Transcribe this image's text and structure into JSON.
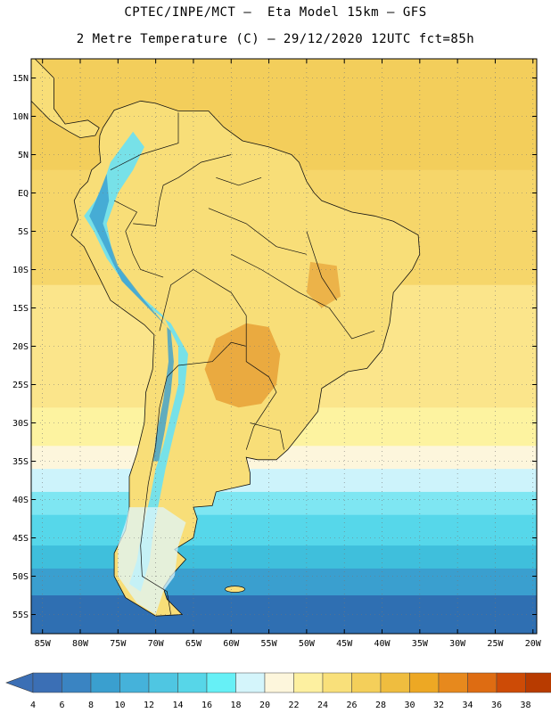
{
  "header": {
    "line1": "CPTEC/INPE/MCT –  Eta Model 15km – GFS",
    "line2": "2 Metre Temperature (C) – 29/12/2020 12UTC fct=85h"
  },
  "map": {
    "lat_labels": [
      "15N",
      "10N",
      "5N",
      "EQ",
      "5S",
      "10S",
      "15S",
      "20S",
      "25S",
      "30S",
      "35S",
      "40S",
      "45S",
      "50S",
      "55S"
    ],
    "lon_labels": [
      "85W",
      "80W",
      "75W",
      "70W",
      "65W",
      "60W",
      "55W",
      "50W",
      "45W",
      "40W",
      "35W",
      "30W",
      "25W",
      "20W"
    ],
    "lat_values": [
      15,
      10,
      5,
      0,
      -5,
      -10,
      -15,
      -20,
      -25,
      -30,
      -35,
      -40,
      -45,
      -50,
      -55
    ],
    "lon_values": [
      -85,
      -80,
      -75,
      -70,
      -65,
      -60,
      -55,
      -50,
      -45,
      -40,
      -35,
      -30,
      -25,
      -20
    ],
    "bounds": {
      "lon_min": -86.5,
      "lon_max": -19.5,
      "lat_min": -57.5,
      "lat_max": 17.5
    },
    "bands": [
      {
        "lat_top": 17.5,
        "lat_bottom": 3,
        "color": "#f3ce5b"
      },
      {
        "lat_top": 3,
        "lat_bottom": -12,
        "color": "#f6d66a"
      },
      {
        "lat_top": -12,
        "lat_bottom": -28,
        "color": "#fbe58b"
      },
      {
        "lat_top": -28,
        "lat_bottom": -33,
        "color": "#fdf3a0"
      },
      {
        "lat_top": -33,
        "lat_bottom": -36,
        "color": "#fdf6dc"
      },
      {
        "lat_top": -36,
        "lat_bottom": -39,
        "color": "#cdf3fb"
      },
      {
        "lat_top": -39,
        "lat_bottom": -42,
        "color": "#7ee6f2"
      },
      {
        "lat_top": -42,
        "lat_bottom": -46,
        "color": "#56d7ea"
      },
      {
        "lat_top": -46,
        "lat_bottom": -49,
        "color": "#3fbfdc"
      },
      {
        "lat_top": -49,
        "lat_bottom": -52.5,
        "color": "#3a9fcf"
      },
      {
        "lat_top": -52.5,
        "lat_bottom": -57.5,
        "color": "#2f6fb2"
      }
    ],
    "land_color": "#f8de78",
    "hot_color": "#e8a43a",
    "cool_color": "#70e0ee",
    "cold_color": "#3a9fcf"
  },
  "colorbar": {
    "labels": [
      "4",
      "6",
      "8",
      "10",
      "12",
      "14",
      "16",
      "18",
      "20",
      "22",
      "24",
      "26",
      "28",
      "30",
      "32",
      "34",
      "36",
      "38"
    ],
    "colors": [
      "#3b6fb5",
      "#3a84c2",
      "#3a9fcf",
      "#45b2da",
      "#4fc6e2",
      "#57d6e8",
      "#66f0f6",
      "#d4f5fb",
      "#fdf6dc",
      "#fdf0a0",
      "#f9e07a",
      "#f4cf5a",
      "#efbd3f",
      "#eda824",
      "#e7891d",
      "#de6c12",
      "#cd4b06",
      "#b83b00"
    ],
    "low_color": "#3b6fb5",
    "high_color": "#b83b00"
  }
}
